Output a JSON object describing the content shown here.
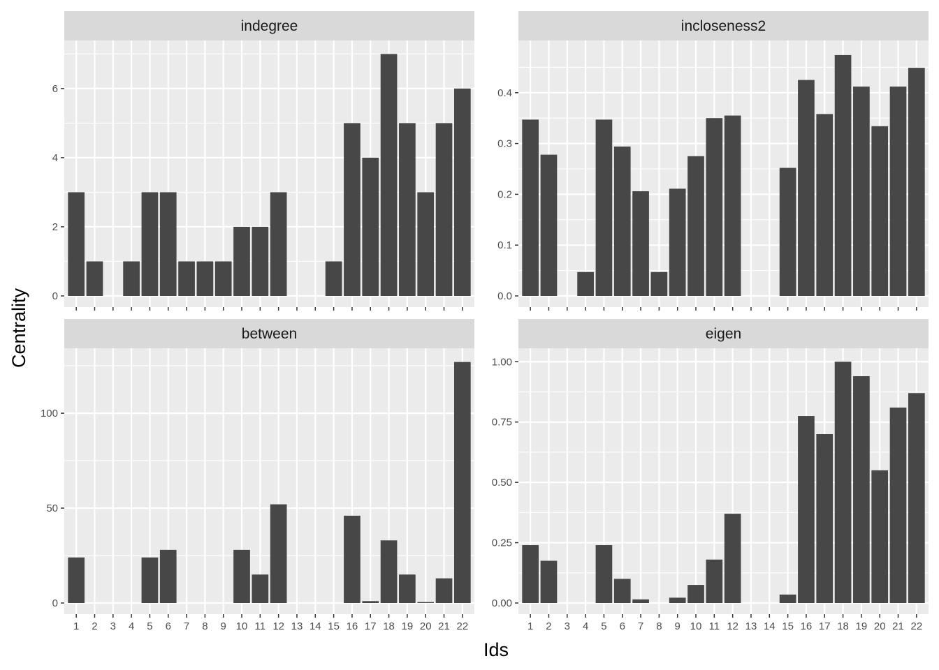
{
  "chart_data": {
    "type": "bar",
    "layout": "facet-grid-2x2",
    "xlabel": "Ids",
    "ylabel": "Centrality",
    "categories": [
      "1",
      "2",
      "3",
      "4",
      "5",
      "6",
      "7",
      "8",
      "9",
      "10",
      "11",
      "12",
      "13",
      "14",
      "15",
      "16",
      "17",
      "18",
      "19",
      "20",
      "21",
      "22"
    ],
    "grid": true,
    "panels": [
      {
        "title": "indegree",
        "ylim": [
          0,
          7.35
        ],
        "yticks": [
          0,
          2,
          4,
          6
        ],
        "ytick_labels": [
          "0",
          "2",
          "4",
          "6"
        ],
        "values": [
          3,
          1,
          0,
          1,
          3,
          3,
          1,
          1,
          1,
          2,
          2,
          3,
          0,
          0,
          1,
          5,
          4,
          7,
          5,
          3,
          5,
          6
        ]
      },
      {
        "title": "incloseness2",
        "ylim": [
          0,
          0.5
        ],
        "yticks": [
          0,
          0.1,
          0.2,
          0.3,
          0.4
        ],
        "ytick_labels": [
          "0.0",
          "0.1",
          "0.2",
          "0.3",
          "0.4"
        ],
        "values": [
          0.347,
          0.278,
          0,
          0.047,
          0.347,
          0.294,
          0.206,
          0.047,
          0.211,
          0.275,
          0.35,
          0.355,
          0,
          0,
          0.252,
          0.425,
          0.358,
          0.474,
          0.412,
          0.334,
          0.412,
          0.449
        ]
      },
      {
        "title": "between",
        "ylim": [
          0,
          133.5
        ],
        "yticks": [
          0,
          50,
          100
        ],
        "ytick_labels": [
          "0",
          "50",
          "100"
        ],
        "values": [
          24,
          0,
          0,
          0,
          24,
          28,
          0,
          0,
          0,
          28,
          15,
          52,
          0,
          0,
          0,
          46,
          1,
          33,
          15,
          0.5,
          13,
          127
        ]
      },
      {
        "title": "eigen",
        "ylim": [
          0,
          1.05
        ],
        "yticks": [
          0,
          0.25,
          0.5,
          0.75,
          1.0
        ],
        "ytick_labels": [
          "0.00",
          "0.25",
          "0.50",
          "0.75",
          "1.00"
        ],
        "values": [
          0.24,
          0.175,
          0,
          0,
          0.24,
          0.1,
          0.015,
          0,
          0.022,
          0.075,
          0.18,
          0.37,
          0,
          0,
          0.035,
          0.775,
          0.7,
          1.0,
          0.94,
          0.55,
          0.81,
          0.87
        ]
      }
    ]
  }
}
